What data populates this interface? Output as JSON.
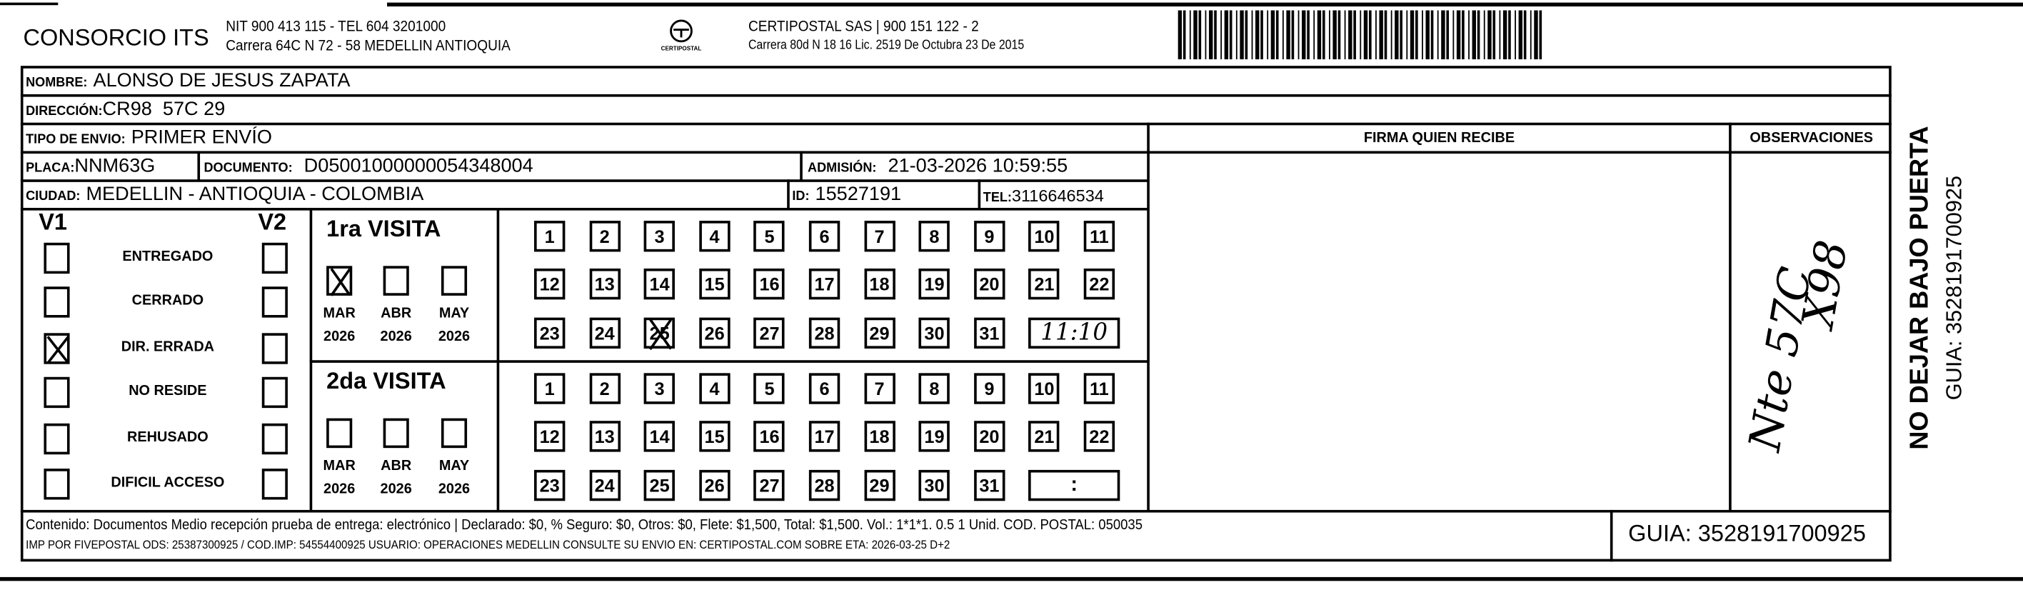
{
  "header": {
    "company": "CONSORCIO ITS",
    "company_line1": "NIT 900 413 115 - TEL 604 3201000",
    "company_line2": "Carrera 64C N 72 - 58 MEDELLIN ANTIOQUIA",
    "logo_text": "CERTIPOSTAL",
    "carrier_line1": "CERTIPOSTAL SAS | 900 151 122 - 2",
    "carrier_line2": "Carrera 80d N 18 16  Lic. 2519 De Octubra 23 De 2015",
    "barcode_icon": "barcode"
  },
  "recipient": {
    "nombre_label": "NOMBRE:",
    "nombre": "ALONSO DE JESUS ZAPATA",
    "direccion_label": "DIRECCIÓN:",
    "direccion": "CR98  57C 29",
    "tipo_label": "TIPO DE ENVIO:",
    "tipo": "PRIMER ENVÍO",
    "placa_label": "PLACA:",
    "placa": "NNM63G",
    "documento_label": "DOCUMENTO:",
    "documento": "D05001000000054348004",
    "admision_label": "ADMISIÓN:",
    "admision": "21-03-2026 10:59:55",
    "ciudad_label": "CIUDAD:",
    "ciudad": "MEDELLIN - ANTIOQUIA - COLOMBIA",
    "id_label": "ID:",
    "id": "15527191",
    "tel_label": "TEL:",
    "tel": "3116646534"
  },
  "signature": {
    "firma_label": "FIRMA QUIEN RECIBE",
    "observaciones_label": "OBSERVACIONES",
    "handwritten_line1": "Nte 57C",
    "handwritten_line2": "X98"
  },
  "status": {
    "v1_label": "V1",
    "v2_label": "V2",
    "items": [
      {
        "label": "ENTREGADO",
        "v1": false,
        "v2": false
      },
      {
        "label": "CERRADO",
        "v1": false,
        "v2": false
      },
      {
        "label": "DIR. ERRADA",
        "v1": true,
        "v2": false
      },
      {
        "label": "NO RESIDE",
        "v1": false,
        "v2": false
      },
      {
        "label": "REHUSADO",
        "v1": false,
        "v2": false
      },
      {
        "label": "DIFICIL ACCESO",
        "v1": false,
        "v2": false
      }
    ]
  },
  "visits": [
    {
      "title": "1ra VISITA",
      "months": [
        {
          "month": "MAR",
          "year": "2026",
          "checked": true
        },
        {
          "month": "ABR",
          "year": "2026",
          "checked": false
        },
        {
          "month": "MAY",
          "year": "2026",
          "checked": false
        }
      ],
      "days": [
        "1",
        "2",
        "3",
        "4",
        "5",
        "6",
        "7",
        "8",
        "9",
        "10",
        "11",
        "12",
        "13",
        "14",
        "15",
        "16",
        "17",
        "18",
        "19",
        "20",
        "21",
        "22",
        "23",
        "24",
        "25",
        "26",
        "27",
        "28",
        "29",
        "30",
        "31"
      ],
      "crossed_day": "25",
      "time": "11:10",
      "time_handwritten": true
    },
    {
      "title": "2da VISITA",
      "months": [
        {
          "month": "MAR",
          "year": "2026",
          "checked": false
        },
        {
          "month": "ABR",
          "year": "2026",
          "checked": false
        },
        {
          "month": "MAY",
          "year": "2026",
          "checked": false
        }
      ],
      "days": [
        "1",
        "2",
        "3",
        "4",
        "5",
        "6",
        "7",
        "8",
        "9",
        "10",
        "11",
        "12",
        "13",
        "14",
        "15",
        "16",
        "17",
        "18",
        "19",
        "20",
        "21",
        "22",
        "23",
        "24",
        "25",
        "26",
        "27",
        "28",
        "29",
        "30",
        "31"
      ],
      "crossed_day": null,
      "time": ":",
      "time_handwritten": false
    }
  ],
  "side": {
    "warning": "NO DEJAR BAJO PUERTA",
    "guia": "GUIA: 3528191700925"
  },
  "footer": {
    "line1": "Contenido: Documentos Medio recepción prueba de entrega: electrónico | Declarado: $0, % Seguro: $0, Otros: $0, Flete: $1,500, Total: $1,500. Vol.: 1*1*1. 0.5  1 Unid. COD. POSTAL: 050035",
    "line2": "IMP POR FIVEPOSTAL ODS: 25387300925 / COD.IMP: 54554400925 USUARIO: OPERACIONES MEDELLIN CONSULTE SU ENVIO EN: CERTIPOSTAL.COM SOBRE ETA: 2026-03-25 D+2",
    "guia": "GUIA: 3528191700925"
  }
}
